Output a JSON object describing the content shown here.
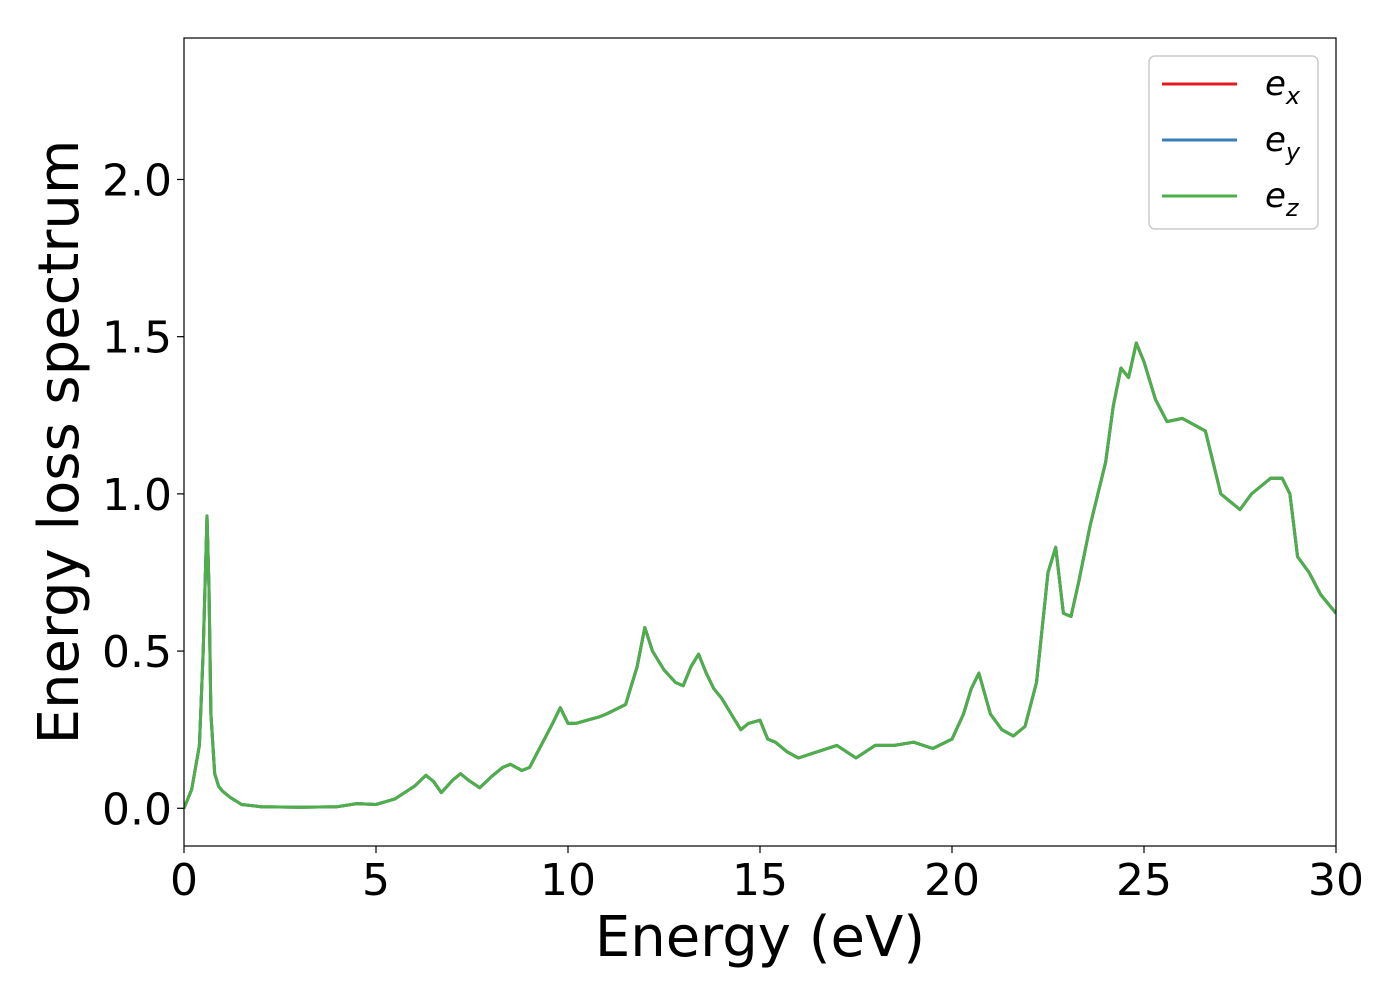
{
  "chart_data": {
    "type": "line",
    "title": "",
    "xlabel": "Energy (eV)",
    "ylabel": "Energy loss spectrum",
    "xlim": [
      0,
      30
    ],
    "ylim": [
      -0.12,
      2.45
    ],
    "xticks": [
      0,
      5,
      10,
      15,
      20,
      25,
      30
    ],
    "xtick_labels": [
      "0",
      "5",
      "10",
      "15",
      "20",
      "25",
      "30"
    ],
    "yticks": [
      0.0,
      0.5,
      1.0,
      1.5,
      2.0
    ],
    "ytick_labels": [
      "0.0",
      "0.5",
      "1.0",
      "1.5",
      "2.0"
    ],
    "grid": false,
    "legend_position": "top-right",
    "x": [
      0,
      0.2,
      0.4,
      0.5,
      0.6,
      0.65,
      0.7,
      0.8,
      0.9,
      1.0,
      1.2,
      1.5,
      2.0,
      3.0,
      4.0,
      4.5,
      5.0,
      5.5,
      6.0,
      6.3,
      6.5,
      6.7,
      7.0,
      7.2,
      7.4,
      7.7,
      8.0,
      8.3,
      8.5,
      8.8,
      9.0,
      9.3,
      9.6,
      9.8,
      10.0,
      10.2,
      10.5,
      10.8,
      11.0,
      11.5,
      11.8,
      12.0,
      12.2,
      12.5,
      12.8,
      13.0,
      13.2,
      13.4,
      13.6,
      13.8,
      14.0,
      14.3,
      14.5,
      14.7,
      15.0,
      15.2,
      15.4,
      15.7,
      16.0,
      16.5,
      17.0,
      17.5,
      18.0,
      18.5,
      19.0,
      19.5,
      20.0,
      20.3,
      20.5,
      20.7,
      21.0,
      21.3,
      21.6,
      21.9,
      22.2,
      22.5,
      22.7,
      22.9,
      23.1,
      23.3,
      23.6,
      24.0,
      24.2,
      24.4,
      24.6,
      24.8,
      25.0,
      25.3,
      25.6,
      26.0,
      26.3,
      26.6,
      26.8,
      27.0,
      27.2,
      27.5,
      27.8,
      28.0,
      28.3,
      28.6,
      28.8,
      29.0,
      29.3,
      29.6,
      30.0
    ],
    "series": [
      {
        "name": "e_x",
        "color": "#e41a1c",
        "values": [
          0.0,
          0.06,
          0.2,
          0.5,
          0.93,
          0.7,
          0.3,
          0.11,
          0.07,
          0.055,
          0.035,
          0.012,
          0.005,
          0.003,
          0.005,
          0.015,
          0.012,
          0.03,
          0.07,
          0.105,
          0.085,
          0.05,
          0.09,
          0.11,
          0.09,
          0.065,
          0.1,
          0.13,
          0.14,
          0.12,
          0.13,
          0.2,
          0.27,
          0.32,
          0.27,
          0.27,
          0.28,
          0.29,
          0.3,
          0.33,
          0.45,
          0.575,
          0.5,
          0.44,
          0.4,
          0.39,
          0.45,
          0.49,
          0.43,
          0.38,
          0.35,
          0.29,
          0.25,
          0.27,
          0.28,
          0.22,
          0.21,
          0.18,
          0.16,
          0.18,
          0.2,
          0.16,
          0.2,
          0.2,
          0.21,
          0.19,
          0.22,
          0.3,
          0.38,
          0.43,
          0.3,
          0.25,
          0.23,
          0.26,
          0.4,
          0.75,
          0.83,
          0.62,
          0.61,
          0.72,
          0.9,
          1.1,
          1.28,
          1.4,
          1.37,
          1.48,
          1.42,
          1.3,
          1.23,
          1.24,
          1.22,
          1.2,
          1.1,
          1.0,
          0.98,
          0.95,
          1.0,
          1.02,
          1.05,
          1.05,
          1.0,
          0.8,
          0.75,
          0.68,
          0.62
        ]
      },
      {
        "name": "e_y",
        "color": "#377eb8",
        "values": [
          0.0,
          0.06,
          0.2,
          0.5,
          0.93,
          0.7,
          0.3,
          0.11,
          0.07,
          0.055,
          0.035,
          0.012,
          0.005,
          0.003,
          0.005,
          0.015,
          0.012,
          0.03,
          0.07,
          0.105,
          0.085,
          0.05,
          0.09,
          0.11,
          0.09,
          0.065,
          0.1,
          0.13,
          0.14,
          0.12,
          0.13,
          0.2,
          0.27,
          0.32,
          0.27,
          0.27,
          0.28,
          0.29,
          0.3,
          0.33,
          0.45,
          0.575,
          0.5,
          0.44,
          0.4,
          0.39,
          0.45,
          0.49,
          0.43,
          0.38,
          0.35,
          0.29,
          0.25,
          0.27,
          0.28,
          0.22,
          0.21,
          0.18,
          0.16,
          0.18,
          0.2,
          0.16,
          0.2,
          0.2,
          0.21,
          0.19,
          0.22,
          0.3,
          0.38,
          0.43,
          0.3,
          0.25,
          0.23,
          0.26,
          0.4,
          0.75,
          0.83,
          0.62,
          0.61,
          0.72,
          0.9,
          1.1,
          1.28,
          1.4,
          1.37,
          1.48,
          1.42,
          1.3,
          1.23,
          1.24,
          1.22,
          1.2,
          1.1,
          1.0,
          0.98,
          0.95,
          1.0,
          1.02,
          1.05,
          1.05,
          1.0,
          0.8,
          0.75,
          0.68,
          0.62
        ]
      },
      {
        "name": "e_z",
        "color": "#4daf4a",
        "values": [
          0.0,
          0.06,
          0.2,
          0.5,
          0.93,
          0.7,
          0.3,
          0.11,
          0.07,
          0.055,
          0.035,
          0.012,
          0.005,
          0.003,
          0.005,
          0.015,
          0.012,
          0.03,
          0.07,
          0.105,
          0.085,
          0.05,
          0.09,
          0.11,
          0.09,
          0.065,
          0.1,
          0.13,
          0.14,
          0.12,
          0.13,
          0.2,
          0.27,
          0.32,
          0.27,
          0.27,
          0.28,
          0.29,
          0.3,
          0.33,
          0.45,
          0.575,
          0.5,
          0.44,
          0.4,
          0.39,
          0.45,
          0.49,
          0.43,
          0.38,
          0.35,
          0.29,
          0.25,
          0.27,
          0.28,
          0.22,
          0.21,
          0.18,
          0.16,
          0.18,
          0.2,
          0.16,
          0.2,
          0.2,
          0.21,
          0.19,
          0.22,
          0.3,
          0.38,
          0.43,
          0.3,
          0.25,
          0.23,
          0.26,
          0.4,
          0.75,
          0.83,
          0.62,
          0.61,
          0.72,
          0.9,
          1.1,
          1.28,
          1.4,
          1.37,
          1.48,
          1.42,
          1.3,
          1.23,
          1.24,
          1.22,
          1.2,
          1.1,
          1.0,
          0.98,
          0.95,
          1.0,
          1.02,
          1.05,
          1.05,
          1.0,
          0.8,
          0.75,
          0.68,
          0.62
        ]
      }
    ],
    "legend": [
      {
        "base": "e",
        "sub": "x",
        "color": "#e41a1c"
      },
      {
        "base": "e",
        "sub": "y",
        "color": "#377eb8"
      },
      {
        "base": "e",
        "sub": "z",
        "color": "#4daf4a"
      }
    ]
  }
}
